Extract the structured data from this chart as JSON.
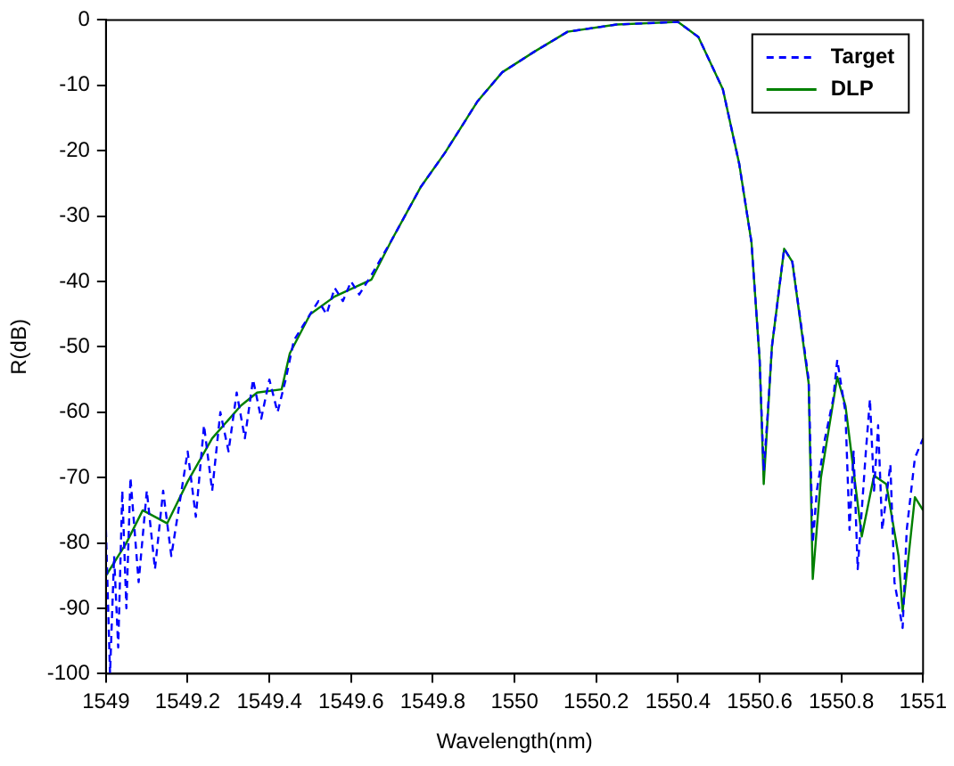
{
  "chart_data": {
    "type": "line",
    "xlabel": "Wavelength(nm)",
    "ylabel": "R(dB)",
    "xlim": [
      1549,
      1551
    ],
    "xticks": [
      1549,
      1549.2,
      1549.4,
      1549.6,
      1549.8,
      1550,
      1550.2,
      1550.4,
      1550.6,
      1550.8,
      1551
    ],
    "ylim": [
      -100,
      0
    ],
    "yticks": [
      -100,
      -90,
      -80,
      -70,
      -60,
      -50,
      -40,
      -30,
      -20,
      -10,
      0
    ],
    "grid": false,
    "legend": "top right",
    "marker": "none",
    "series": [
      {
        "name": "Target",
        "color": "#0000ff",
        "line_style": "dashed",
        "x": [
          1549.0,
          1549.01,
          1549.02,
          1549.03,
          1549.04,
          1549.05,
          1549.06,
          1549.08,
          1549.1,
          1549.12,
          1549.14,
          1549.16,
          1549.18,
          1549.2,
          1549.22,
          1549.24,
          1549.26,
          1549.28,
          1549.3,
          1549.32,
          1549.34,
          1549.36,
          1549.38,
          1549.4,
          1549.42,
          1549.44,
          1549.46,
          1549.5,
          1549.52,
          1549.54,
          1549.56,
          1549.58,
          1549.6,
          1549.62,
          1549.65,
          1549.7,
          1549.77,
          1549.83,
          1549.91,
          1549.97,
          1550.05,
          1550.13,
          1550.25,
          1550.4,
          1550.45,
          1550.51,
          1550.55,
          1550.58,
          1550.6,
          1550.61,
          1550.62,
          1550.63,
          1550.66,
          1550.68,
          1550.72,
          1550.73,
          1550.74,
          1550.76,
          1550.78,
          1550.79,
          1550.81,
          1550.82,
          1550.83,
          1550.84,
          1550.86,
          1550.87,
          1550.88,
          1550.89,
          1550.9,
          1550.92,
          1550.93,
          1550.95,
          1550.96,
          1550.98,
          1551.0
        ],
        "values": [
          -78,
          -100,
          -82,
          -96,
          -72,
          -90,
          -70,
          -86,
          -72,
          -84,
          -72,
          -82,
          -74,
          -66,
          -76,
          -62,
          -72,
          -60,
          -66,
          -57,
          -64,
          -55,
          -61,
          -55,
          -60,
          -55,
          -49,
          -45,
          -43,
          -45,
          -41,
          -43,
          -40,
          -42,
          -39,
          -33.6,
          -25.6,
          -20.3,
          -12.4,
          -8,
          -4.8,
          -1.8,
          -0.7,
          -0.3,
          -2.6,
          -10.6,
          -22,
          -34,
          -52,
          -69,
          -60,
          -50,
          -35,
          -37,
          -55,
          -80,
          -72,
          -64,
          -58,
          -52,
          -60,
          -78,
          -66,
          -84,
          -66,
          -58,
          -72,
          -62,
          -78,
          -68,
          -86,
          -93,
          -78,
          -67,
          -64
        ]
      },
      {
        "name": "DLP",
        "color": "#008000",
        "line_style": "solid",
        "x": [
          1549.0,
          1549.05,
          1549.09,
          1549.15,
          1549.2,
          1549.26,
          1549.33,
          1549.37,
          1549.43,
          1549.45,
          1549.5,
          1549.56,
          1549.65,
          1549.7,
          1549.77,
          1549.83,
          1549.91,
          1549.97,
          1550.05,
          1550.13,
          1550.25,
          1550.4,
          1550.45,
          1550.51,
          1550.55,
          1550.58,
          1550.6,
          1550.61,
          1550.63,
          1550.66,
          1550.68,
          1550.72,
          1550.73,
          1550.75,
          1550.79,
          1550.81,
          1550.85,
          1550.88,
          1550.91,
          1550.94,
          1550.95,
          1550.98,
          1551.0
        ],
        "values": [
          -85,
          -80,
          -75,
          -77,
          -70.6,
          -64,
          -59,
          -57,
          -56.5,
          -51,
          -45,
          -42.3,
          -39.7,
          -33.6,
          -25.6,
          -20.3,
          -12.4,
          -8,
          -4.8,
          -1.8,
          -0.7,
          -0.3,
          -2.6,
          -10.6,
          -22,
          -34,
          -52,
          -71,
          -50,
          -35,
          -37,
          -55.6,
          -85.5,
          -70,
          -54.6,
          -59,
          -79,
          -69.7,
          -71,
          -82,
          -90.5,
          -73,
          -75
        ]
      }
    ]
  }
}
